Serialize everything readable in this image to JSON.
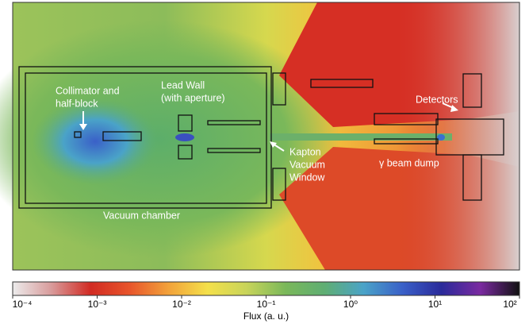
{
  "chart_data": {
    "type": "heatmap",
    "annotations": [
      "Collimator and",
      "half-block",
      "Lead Wall",
      "(with aperture)",
      "Detectors",
      "Kapton",
      "Vacuum",
      "Window",
      "γ beam dump",
      "Vacuum chamber"
    ],
    "colorbar_label": "Flux (a. u.)",
    "clim": [
      0.0001,
      100
    ],
    "clog": true,
    "cticks": [
      {
        "value": 0.0001,
        "label": "10⁻⁴"
      },
      {
        "value": 0.001,
        "label": "10⁻³"
      },
      {
        "value": 0.01,
        "label": "10⁻²"
      },
      {
        "value": 0.1,
        "label": "10⁻¹"
      },
      {
        "value": 1,
        "label": "10⁰"
      },
      {
        "value": 10,
        "label": "10¹"
      },
      {
        "value": 100,
        "label": "10²"
      }
    ],
    "colormap": [
      "#ececec",
      "#d89a9a",
      "#d12a22",
      "#e8552b",
      "#f2a23a",
      "#f4e04a",
      "#c8d45a",
      "#7ab85a",
      "#5fae73",
      "#4aa3c8",
      "#3a60c8",
      "#2a2a9a",
      "#7a2aa0",
      "#111111"
    ]
  }
}
